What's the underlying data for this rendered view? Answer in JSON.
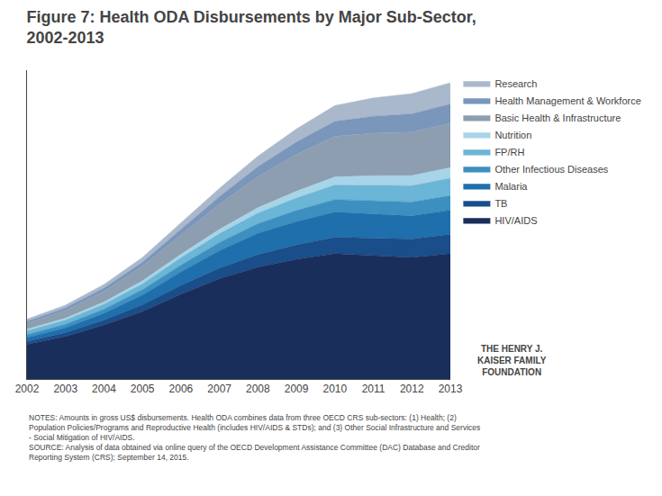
{
  "chart_data": {
    "type": "area",
    "stacked": true,
    "title": "Figure 7: Health ODA Disbursements by Major Sub-Sector,\n2002-2013",
    "x": [
      2002,
      2003,
      2004,
      2005,
      2006,
      2007,
      2008,
      2009,
      2010,
      2011,
      2012,
      2013
    ],
    "series": [
      {
        "name": "HIV/AIDS",
        "color": "#192e5b",
        "values": [
          1.8,
          2.2,
          2.8,
          3.5,
          4.4,
          5.2,
          5.8,
          6.2,
          6.5,
          6.4,
          6.3,
          6.5
        ]
      },
      {
        "name": "TB",
        "color": "#1a4e8a",
        "values": [
          0.15,
          0.2,
          0.25,
          0.35,
          0.45,
          0.55,
          0.65,
          0.75,
          0.85,
          0.9,
          0.95,
          1.0
        ]
      },
      {
        "name": "Malaria",
        "color": "#1f6fad",
        "values": [
          0.2,
          0.25,
          0.35,
          0.5,
          0.7,
          0.9,
          1.1,
          1.2,
          1.3,
          1.25,
          1.2,
          1.25
        ]
      },
      {
        "name": "Other Infectious Diseases",
        "color": "#3d8fc0",
        "values": [
          0.15,
          0.18,
          0.22,
          0.28,
          0.35,
          0.42,
          0.5,
          0.58,
          0.65,
          0.7,
          0.72,
          0.75
        ]
      },
      {
        "name": "FP/RH",
        "color": "#6bb5d6",
        "values": [
          0.2,
          0.22,
          0.25,
          0.3,
          0.38,
          0.46,
          0.55,
          0.65,
          0.75,
          0.8,
          0.85,
          0.9
        ]
      },
      {
        "name": "Nutrition",
        "color": "#a8d4e8",
        "values": [
          0.08,
          0.1,
          0.12,
          0.15,
          0.18,
          0.22,
          0.28,
          0.35,
          0.42,
          0.48,
          0.52,
          0.55
        ]
      },
      {
        "name": "Basic Health & Infrastructure",
        "color": "#8c9eaf",
        "values": [
          0.3,
          0.4,
          0.55,
          0.75,
          1.0,
          1.3,
          1.6,
          1.9,
          2.1,
          2.2,
          2.25,
          2.3
        ]
      },
      {
        "name": "Health Management & Workforce",
        "color": "#7a96bb",
        "values": [
          0.1,
          0.13,
          0.17,
          0.22,
          0.3,
          0.4,
          0.52,
          0.65,
          0.78,
          0.88,
          0.95,
          1.0
        ]
      },
      {
        "name": "Research",
        "color": "#aab8cc",
        "values": [
          0.12,
          0.15,
          0.19,
          0.25,
          0.33,
          0.43,
          0.55,
          0.68,
          0.82,
          0.95,
          1.05,
          1.1
        ]
      }
    ],
    "xlim": [
      2002,
      2013
    ],
    "xticks": [
      2002,
      2003,
      2004,
      2005,
      2006,
      2007,
      2008,
      2009,
      2010,
      2011,
      2012,
      2013
    ],
    "ylim": [
      0,
      16
    ],
    "tick_labels": "x",
    "grid": false,
    "legend": "upper right",
    "annotations": [
      "NOTES: Amounts in gross US$ disbursements. Health ODA combines data from three OECD CRS sub-sectors: (1) Health; (2)\nPopulation Policies/Programs and Reproductive Health (includes HIV/AIDS & STDs); and (3) Other Social Infrastructure and Services\n- Social Mitigation of HIV/AIDS.\nSOURCE: Analysis of data obtained via online query of the OECD Development Assistance Committee (DAC) Database and Creditor\nReporting System (CRS); September 14, 2015.",
      "THE HENRY J.\nKAISER FAMILY\nFOUNDATION"
    ]
  }
}
